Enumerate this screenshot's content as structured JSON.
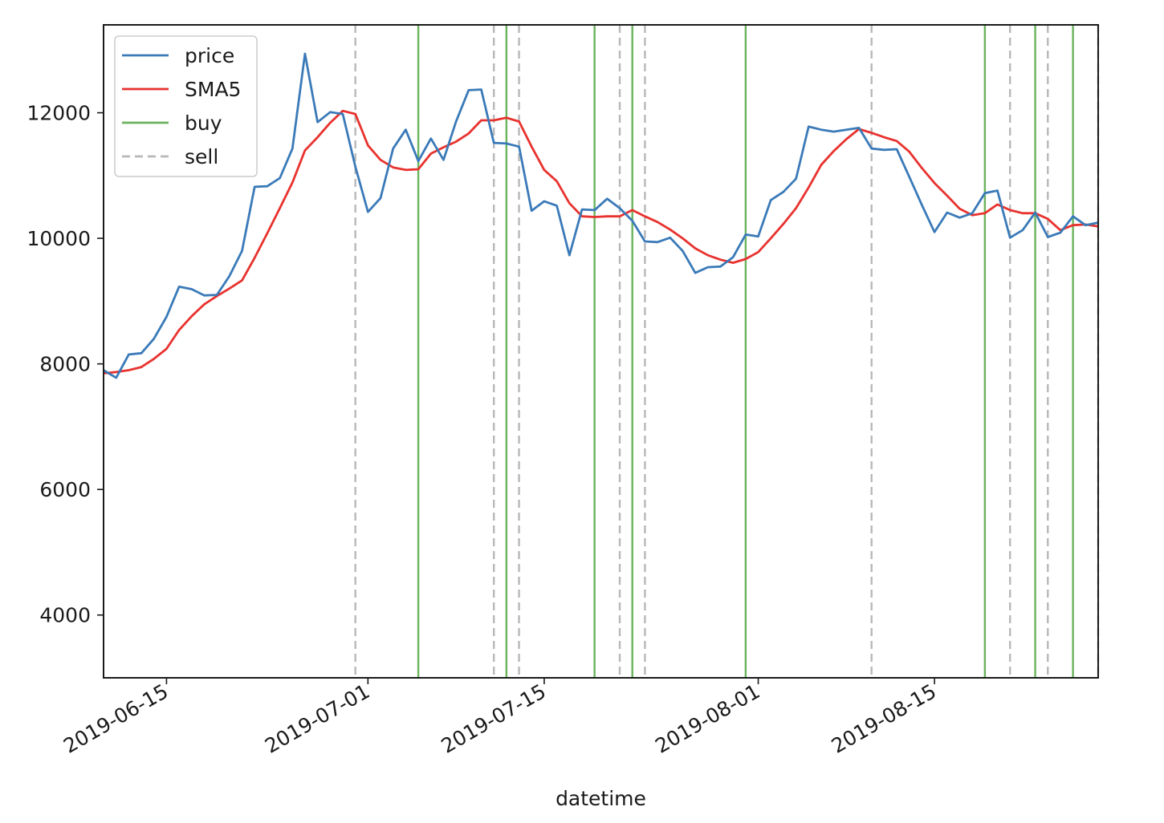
{
  "chart_data": {
    "type": "line",
    "xlabel": "datetime",
    "ylabel": "",
    "xlim": [
      "2019-06-10",
      "2019-08-28"
    ],
    "ylim": [
      3000,
      13400
    ],
    "y_ticks": [
      4000,
      6000,
      8000,
      10000,
      12000
    ],
    "x_ticks": [
      "2019-06-15",
      "2019-07-01",
      "2019-07-15",
      "2019-08-01",
      "2019-08-15"
    ],
    "grid": false,
    "legend_position": "top-left",
    "x": [
      "2019-06-10",
      "2019-06-11",
      "2019-06-12",
      "2019-06-13",
      "2019-06-14",
      "2019-06-15",
      "2019-06-16",
      "2019-06-17",
      "2019-06-18",
      "2019-06-19",
      "2019-06-20",
      "2019-06-21",
      "2019-06-22",
      "2019-06-23",
      "2019-06-24",
      "2019-06-25",
      "2019-06-26",
      "2019-06-27",
      "2019-06-28",
      "2019-06-29",
      "2019-06-30",
      "2019-07-01",
      "2019-07-02",
      "2019-07-03",
      "2019-07-04",
      "2019-07-05",
      "2019-07-06",
      "2019-07-07",
      "2019-07-08",
      "2019-07-09",
      "2019-07-10",
      "2019-07-11",
      "2019-07-12",
      "2019-07-13",
      "2019-07-14",
      "2019-07-15",
      "2019-07-16",
      "2019-07-17",
      "2019-07-18",
      "2019-07-19",
      "2019-07-20",
      "2019-07-21",
      "2019-07-22",
      "2019-07-23",
      "2019-07-24",
      "2019-07-25",
      "2019-07-26",
      "2019-07-27",
      "2019-07-28",
      "2019-07-29",
      "2019-07-30",
      "2019-07-31",
      "2019-08-01",
      "2019-08-02",
      "2019-08-03",
      "2019-08-04",
      "2019-08-05",
      "2019-08-06",
      "2019-08-07",
      "2019-08-08",
      "2019-08-09",
      "2019-08-10",
      "2019-08-11",
      "2019-08-12",
      "2019-08-13",
      "2019-08-14",
      "2019-08-15",
      "2019-08-16",
      "2019-08-17",
      "2019-08-18",
      "2019-08-19",
      "2019-08-20",
      "2019-08-21",
      "2019-08-22",
      "2019-08-23",
      "2019-08-24",
      "2019-08-25",
      "2019-08-26",
      "2019-08-27",
      "2019-08-28"
    ],
    "series": [
      {
        "name": "price",
        "color": "#3a7ab8",
        "values": [
          7900,
          7780,
          8150,
          8170,
          8400,
          8750,
          9230,
          9190,
          9090,
          9100,
          9400,
          9800,
          10820,
          10830,
          10960,
          11430,
          12940,
          11850,
          12010,
          11980,
          11140,
          10420,
          10640,
          11430,
          11730,
          11230,
          11590,
          11250,
          11860,
          12360,
          12370,
          11520,
          11510,
          11460,
          10440,
          10590,
          10520,
          9730,
          10460,
          10450,
          10630,
          10480,
          10280,
          9950,
          9940,
          10010,
          9800,
          9450,
          9540,
          9550,
          9700,
          10060,
          10030,
          10610,
          10740,
          10950,
          11780,
          11730,
          11700,
          11730,
          11760,
          11430,
          11410,
          11420,
          10980,
          10530,
          10100,
          10410,
          10330,
          10400,
          10720,
          10760,
          10010,
          10130,
          10410,
          10020,
          10090,
          10350,
          10210,
          10250
        ]
      },
      {
        "name": "SMA5",
        "color": "#e8322e",
        "values": [
          7850,
          7870,
          7900,
          7950,
          8080,
          8240,
          8540,
          8760,
          8950,
          9080,
          9200,
          9330,
          9690,
          10080,
          10480,
          10890,
          11400,
          11610,
          11840,
          12030,
          11980,
          11480,
          11250,
          11130,
          11090,
          11100,
          11350,
          11450,
          11540,
          11670,
          11880,
          11880,
          11920,
          11860,
          11460,
          11090,
          10910,
          10560,
          10350,
          10340,
          10350,
          10350,
          10450,
          10350,
          10260,
          10140,
          10000,
          9840,
          9730,
          9660,
          9610,
          9670,
          9780,
          10000,
          10230,
          10480,
          10810,
          11170,
          11390,
          11580,
          11740,
          11680,
          11610,
          11550,
          11380,
          11120,
          10880,
          10680,
          10470,
          10370,
          10400,
          10540,
          10450,
          10400,
          10400,
          10310,
          10130,
          10210,
          10220,
          10190
        ]
      }
    ],
    "buy_dates": [
      "2019-07-05",
      "2019-07-12",
      "2019-07-19",
      "2019-07-22",
      "2019-07-31",
      "2019-08-19",
      "2019-08-23",
      "2019-08-26"
    ],
    "sell_dates": [
      "2019-06-30",
      "2019-07-11",
      "2019-07-13",
      "2019-07-21",
      "2019-07-23",
      "2019-08-10",
      "2019-08-21",
      "2019-08-24",
      "2019-08-28"
    ],
    "legend": [
      {
        "name": "price",
        "color": "#3a7ab8",
        "style": "solid"
      },
      {
        "name": "SMA5",
        "color": "#e8322e",
        "style": "solid"
      },
      {
        "name": "buy",
        "color": "#6ab45c",
        "style": "solid"
      },
      {
        "name": "sell",
        "color": "#b8b8b8",
        "style": "dashed"
      }
    ],
    "buy_color": "#6ab45c",
    "sell_color": "#b8b8b8"
  }
}
